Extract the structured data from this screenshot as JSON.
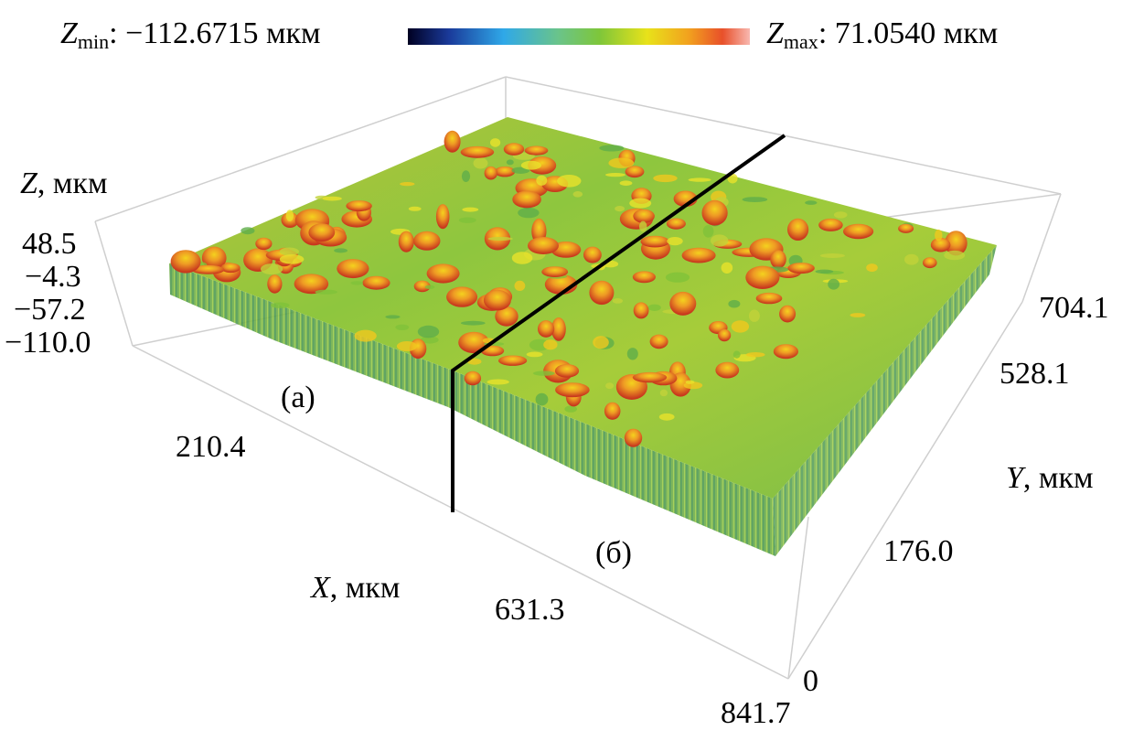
{
  "legend": {
    "zmin_symbol": "Z",
    "zmin_sub": "min",
    "zmin_value": ": −112.6715 мкм",
    "zmax_symbol": "Z",
    "zmax_sub": "max",
    "zmax_value": ": 71.0540 мкм",
    "gradient_colors": [
      "#000022",
      "#1a3a9a",
      "#2fa8e8",
      "#6ac48a",
      "#7ec63a",
      "#e8e21a",
      "#f2a21e",
      "#e8502a",
      "#f8b8b0"
    ]
  },
  "axes": {
    "z": {
      "symbol": "Z",
      "unit": ", мкм",
      "ticks": [
        "48.5",
        "−4.3",
        "−57.2",
        "−110.0"
      ]
    },
    "x": {
      "symbol": "X",
      "unit": ", мкм",
      "ticks": [
        "210.4",
        "631.3",
        "841.7"
      ]
    },
    "y": {
      "symbol": "Y",
      "unit": ", мкм",
      "ticks": [
        "704.1",
        "528.1",
        "176.0",
        "0"
      ]
    }
  },
  "regions": {
    "a": "(а)",
    "b": "(б)"
  }
}
